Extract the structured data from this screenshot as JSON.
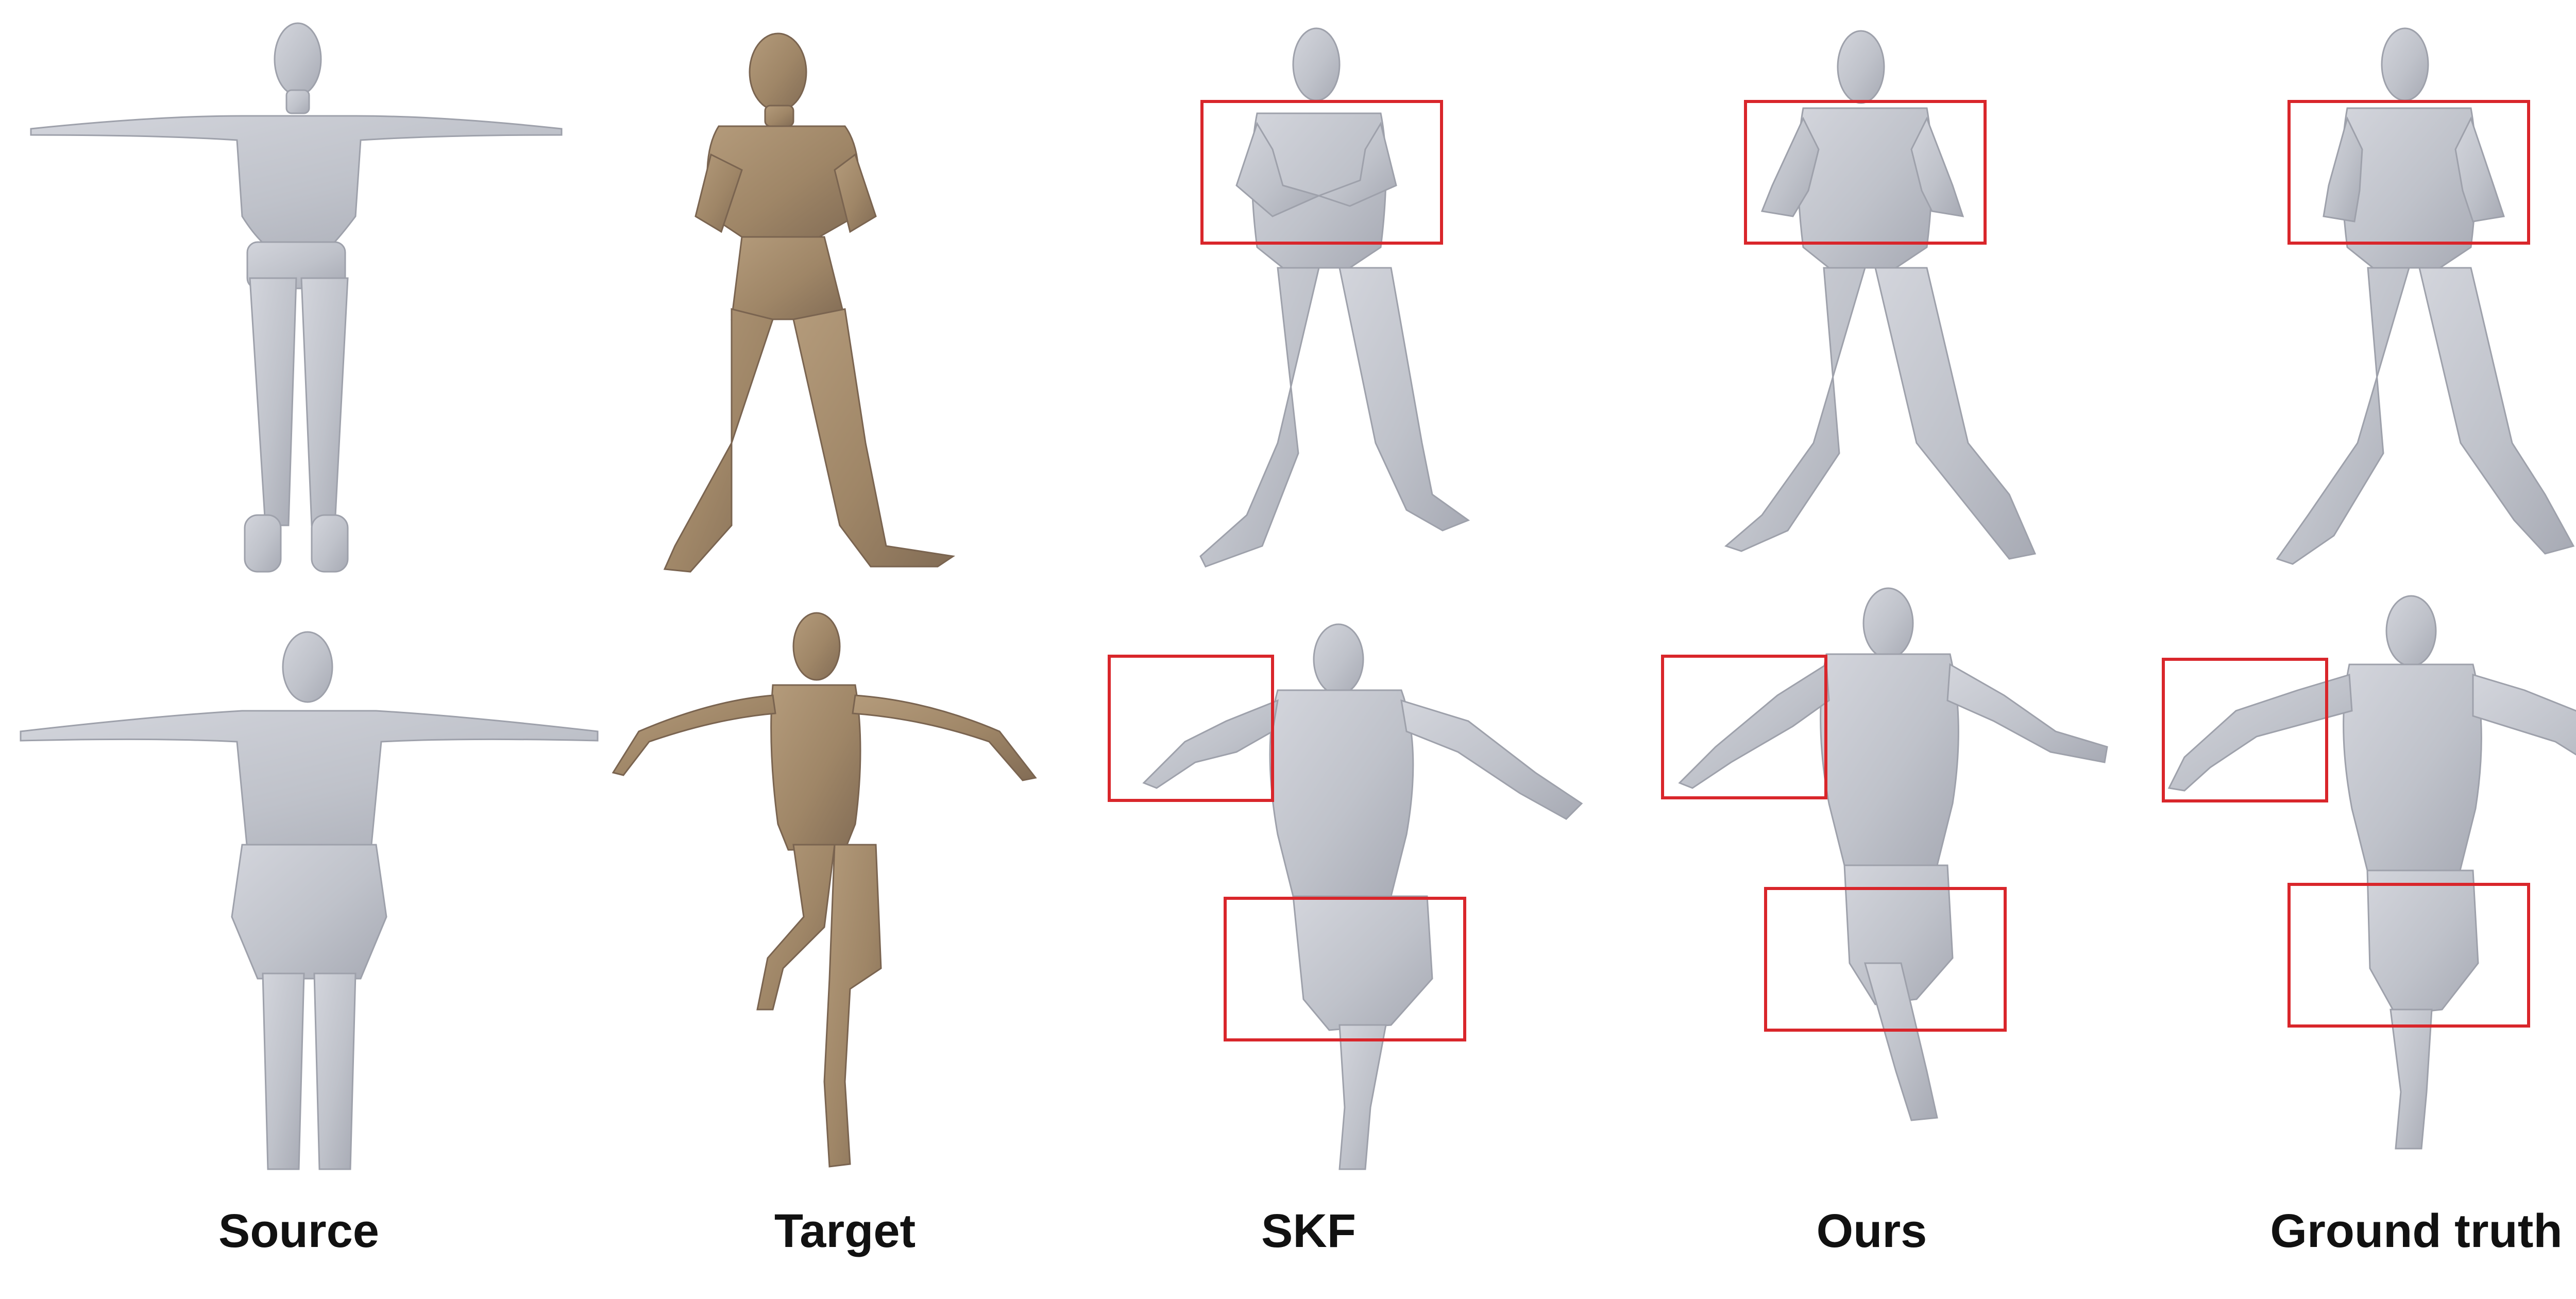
{
  "figure": {
    "columns": [
      {
        "key": "source",
        "label": "Source"
      },
      {
        "key": "target",
        "label": "Target"
      },
      {
        "key": "skf",
        "label": "SKF"
      },
      {
        "key": "ours",
        "label": "Ours"
      },
      {
        "key": "ground_truth",
        "label": "Ground truth"
      }
    ],
    "rows": [
      {
        "key": "row-1-zombie-fighting-pose"
      },
      {
        "key": "row-2-ninja-running-pose"
      }
    ]
  },
  "colors": {
    "background": "#ffffff",
    "mesh_gray": "#c2c4cc",
    "mesh_gray_shadow": "#a6a9b3",
    "mesh_target": "#a48b6c",
    "mesh_target_shadow": "#86705a",
    "highlight_box": "#d9262b"
  }
}
